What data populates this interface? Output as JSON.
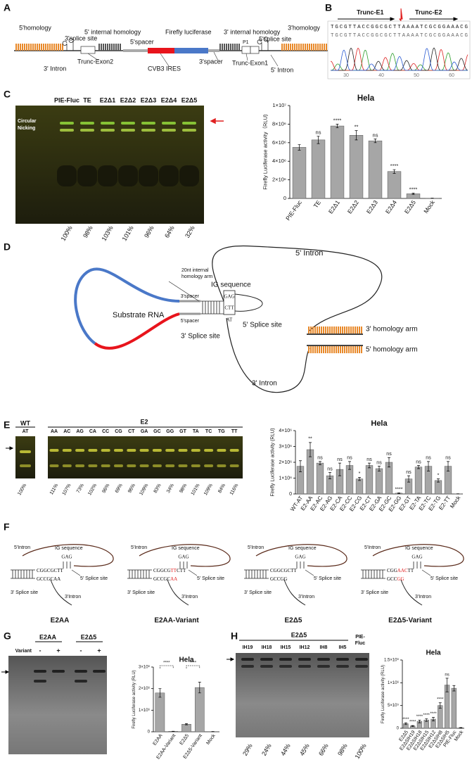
{
  "panel_labels": [
    "A",
    "B",
    "C",
    "D",
    "E",
    "F",
    "G",
    "H"
  ],
  "panel_a": {
    "homology5": "5'homology",
    "splice3": "3'splice site",
    "internal5": "5' internal homology",
    "spacer5": "5'spacer",
    "fluc": "Firefly luciferase",
    "internal3": "3' internal homology",
    "splice5": "5'splice site",
    "homology3": "3'homology",
    "p1": "P1",
    "intron3": "3' Intron",
    "exon2": "Trunc-Exon2",
    "ires": "CVB3 IRES",
    "spacer3": "3'spacer",
    "exon1": "Trunc-Exon1",
    "intron5": "5' Intron"
  },
  "panel_b": {
    "e1": "Trunc-E1",
    "e2": "Trunc-E2",
    "sequence": "TGCGTTACCGGCGCTTAAAATCGCGGAAACG",
    "read": "TGCGTTACCGGCGCTTAAAATCGCGGAAACG",
    "axis": [
      30,
      40,
      50,
      60
    ]
  },
  "panel_c": {
    "lanes": [
      "PIE-Fluc",
      "TE",
      "E2Δ1",
      "E2Δ2",
      "E2Δ3",
      "E2Δ4",
      "E2Δ5"
    ],
    "circular": "Circular",
    "nicking": "Nicking",
    "percent": [
      "100%",
      "98%",
      "103%",
      "101%",
      "96%",
      "64%",
      "32%"
    ]
  },
  "panel_d": {
    "intron5": "5' Intron",
    "arm20": "20nt internal",
    "arm20b": "homology arm",
    "ig": "IG sequence",
    "gag": "GAG",
    "ctt": "CTT",
    "at": "AT",
    "substrate": "Substrate RNA",
    "spacer3": "3'spacer",
    "spacer5": "5'spacer",
    "splice5": "5' Splice site",
    "splice3": "3' Splice site",
    "harm3": "3' homology arm",
    "harm5": "5' homology arm",
    "intron3": "3' Intron"
  },
  "panel_e": {
    "wt": "WT",
    "at": "AT",
    "e2": "E2",
    "lanes": [
      "AA",
      "AC",
      "AG",
      "CA",
      "CC",
      "CG",
      "CT",
      "GA",
      "GC",
      "GG",
      "GT",
      "TA",
      "TC",
      "TG",
      "TT"
    ],
    "wt_percent": "100%",
    "percent": [
      "111%",
      "107%",
      "73%",
      "102%",
      "96%",
      "69%",
      "96%",
      "109%",
      "83%",
      "34%",
      "98%",
      "101%",
      "109%",
      "84%",
      "116%"
    ]
  },
  "panel_f": [
    {
      "title": "E2AA",
      "intron5": "5'Intron",
      "ig": "IG sequence",
      "gag": "GAG",
      "top": [
        {
          "text": "CGGCGCTT",
          "color": "#000"
        }
      ],
      "bottom": [
        {
          "text": "GCCGCAA",
          "color": "#000"
        }
      ],
      "splice5": "5' Splice site",
      "splice3": "3' Splice site",
      "intron3": "3'Intron"
    },
    {
      "title": "E2AA-Variant",
      "intron5": "5'Intron",
      "ig": "IG sequence",
      "gag": "GAG",
      "top": [
        {
          "text": "CGGCG",
          "color": "#000"
        },
        {
          "text": "TT",
          "color": "#e02020"
        },
        {
          "text": "CTT",
          "color": "#000"
        }
      ],
      "bottom": [
        {
          "text": "GCCGC",
          "color": "#000"
        },
        {
          "text": "AA",
          "color": "#e02020"
        }
      ],
      "splice5": "5' Splice site",
      "splice3": "3' Splice site",
      "intron3": "3'Intron"
    },
    {
      "title": "E2Δ5",
      "intron5": "5'Intron",
      "ig": "IG sequence",
      "gag": "GAG",
      "top": [
        {
          "text": "CGGCGCTT",
          "color": "#000"
        }
      ],
      "bottom": [
        {
          "text": "GCCGG",
          "color": "#000"
        }
      ],
      "splice5": "5' Splice site",
      "splice3": "3' Splice site",
      "intron3": "3'Intron"
    },
    {
      "title": "E2Δ5-Variant",
      "intron5": "5'Intron",
      "ig": "IG sequence",
      "gag": "GAG",
      "top": [
        {
          "text": "CGG",
          "color": "#000"
        },
        {
          "text": "AAC",
          "color": "#e02020"
        },
        {
          "text": "TT",
          "color": "#000"
        }
      ],
      "bottom": [
        {
          "text": "GCC",
          "color": "#000"
        },
        {
          "text": "GG",
          "color": "#e02020"
        }
      ],
      "splice5": "5' Splice site",
      "splice3": "3' Splice site",
      "intron3": "3'Intron"
    }
  ],
  "panel_g": {
    "groups": [
      "E2AA",
      "E2Δ5"
    ],
    "variant": "Variant",
    "signs": [
      "-",
      "+",
      "-",
      "+"
    ]
  },
  "panel_h": {
    "group": "E2Δ5",
    "lanes": [
      "IH19",
      "IH18",
      "IH15",
      "IH12",
      "IH8",
      "IH5"
    ],
    "control": [
      "PIE-",
      "Fluc"
    ],
    "percent": [
      "29%",
      "24%",
      "44%",
      "45%",
      "66%",
      "98%",
      "100%"
    ]
  },
  "chart_data": [
    {
      "type": "bar",
      "title": "Hela",
      "y_label": "Firefly Luciferase activity（RLU)",
      "categories": [
        "PIE-Fluc",
        "TE",
        "E2Δ1",
        "E2Δ2",
        "E2Δ3",
        "E2Δ4",
        "E2Δ5",
        "Mock"
      ],
      "values": [
        5500000,
        6300000,
        7800000,
        6800000,
        6200000,
        2900000,
        500000,
        20000
      ],
      "errors": [
        300000,
        400000,
        200000,
        500000,
        200000,
        200000,
        80000,
        10000
      ],
      "significance": [
        null,
        "ns",
        "****",
        "**",
        "ns",
        "****",
        "****",
        null
      ],
      "color": "#a6a6a6",
      "ylim": [
        0,
        10000000
      ],
      "yticks": [
        0,
        {
          "value": 2000000,
          "label": "2×10⁶"
        },
        {
          "value": 4000000,
          "label": "4×10⁶"
        },
        {
          "value": 6000000,
          "label": "6×10⁶"
        },
        {
          "value": 8000000,
          "label": "8×10⁶"
        },
        {
          "value": 10000000,
          "label": "1×10⁷"
        }
      ]
    },
    {
      "type": "bar",
      "title": "Hela",
      "y_label": "Firefly Luciferase activity (RLU)",
      "categories": [
        "WT-AT",
        "E2-AA",
        "E2-AC",
        "E2-AG",
        "E2-CA",
        "E2-CC",
        "E2-CG",
        "E2-CT",
        "E2-GA",
        "E2-GC",
        "E2-GG",
        "E2-GT",
        "E2-TA",
        "E2-TC",
        "E2-TG",
        "E2-TT",
        "Mock"
      ],
      "values": [
        1750000,
        2800000,
        1950000,
        1150000,
        1550000,
        1800000,
        950000,
        1800000,
        1600000,
        2000000,
        50000,
        950000,
        1700000,
        1750000,
        850000,
        1750000,
        10000
      ],
      "errors": [
        350000,
        450000,
        100000,
        200000,
        400000,
        250000,
        100000,
        150000,
        150000,
        300000,
        20000,
        200000,
        100000,
        300000,
        100000,
        300000,
        5000
      ],
      "significance": [
        null,
        "**",
        "ns",
        "ns",
        "ns",
        "ns",
        "*",
        "ns",
        "ns",
        "ns",
        "****",
        "ns",
        "ns",
        "ns",
        "*",
        "ns",
        null
      ],
      "color": "#a6a6a6",
      "ylim": [
        0,
        4000000
      ],
      "yticks": [
        0,
        {
          "value": 1000000,
          "label": "1×10⁶"
        },
        {
          "value": 2000000,
          "label": "2×10⁶"
        },
        {
          "value": 3000000,
          "label": "3×10⁶"
        },
        {
          "value": 4000000,
          "label": "4×10⁶"
        }
      ]
    },
    {
      "type": "bar",
      "title": "Hela",
      "y_label": "Firefly Luciferase activity (RLU)",
      "categories": [
        "E2AA",
        "E2AA-Variant",
        "E2Δ5",
        "E2Δ5-Variant",
        "Mock"
      ],
      "values": [
        1800000,
        20000,
        350000,
        2050000,
        10000
      ],
      "errors": [
        200000,
        5000,
        30000,
        250000,
        5000
      ],
      "significance": [
        null,
        null,
        null,
        null,
        null
      ],
      "bracket_labels": [
        "****",
        "****"
      ],
      "color": "#a6a6a6",
      "ylim": [
        0,
        3000000
      ],
      "yticks": [
        0,
        {
          "value": 1000000,
          "label": "1×10⁶"
        },
        {
          "value": 2000000,
          "label": "2×10⁶"
        },
        {
          "value": 3000000,
          "label": "3×10⁶"
        }
      ]
    },
    {
      "type": "bar",
      "title": "Hela",
      "y_label": "Firefly Luciferase activity (RLU)",
      "categories": [
        "E2Δ5",
        "E2ΔSIH19",
        "E2ΔSIH18",
        "E2ΔSIH15",
        "E2ΔSIH12",
        "E2ΔSIH8",
        "E2ΔSIH5",
        "PIE-Fluc",
        "Mock"
      ],
      "values": [
        100000,
        50000,
        150000,
        180000,
        200000,
        500000,
        950000,
        880000,
        10000
      ],
      "errors": [
        20000,
        10000,
        30000,
        30000,
        40000,
        60000,
        150000,
        60000,
        5000
      ],
      "significance": [
        "****",
        "****",
        "****",
        "****",
        "****",
        "****",
        "ns",
        null,
        null
      ],
      "color": "#a6a6a6",
      "ylim": [
        0,
        1500000
      ],
      "yticks": [
        0,
        {
          "value": 500000,
          "label": "5×10⁵"
        },
        {
          "value": 1000000,
          "label": "1×10⁶"
        },
        {
          "value": 1500000,
          "label": "1.5×10⁶"
        }
      ]
    }
  ]
}
